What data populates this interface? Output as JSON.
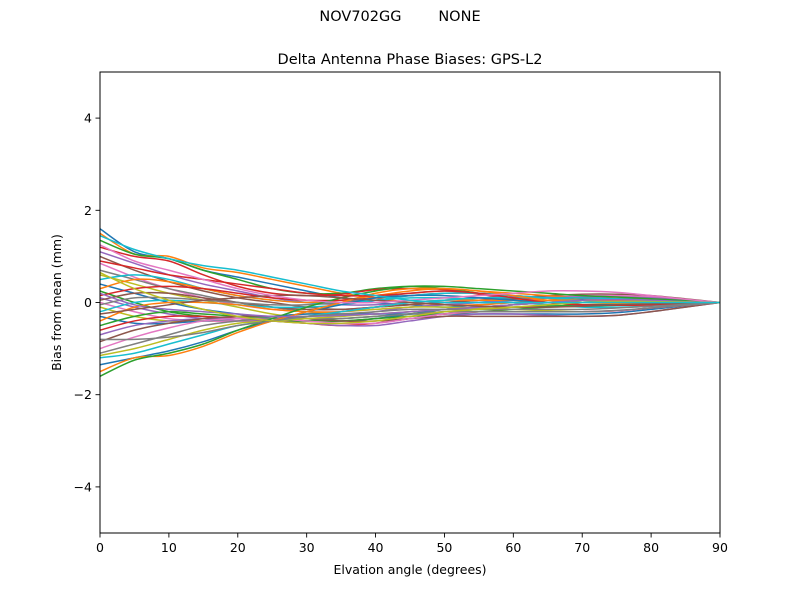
{
  "figure": {
    "suptitle": "NOV702GG        NONE"
  },
  "chart_data": {
    "type": "line",
    "title": "Delta Antenna Phase Biases: GPS-L2",
    "xlabel": "Elvation angle (degrees)",
    "ylabel": "Bias from mean (mm)",
    "xlim": [
      0,
      90
    ],
    "ylim": [
      -5,
      5
    ],
    "xticks": [
      0,
      10,
      20,
      30,
      40,
      50,
      60,
      70,
      80,
      90
    ],
    "yticks": [
      -4,
      -2,
      0,
      2,
      4
    ],
    "ytick_labels": [
      "−4",
      "−2",
      "0",
      "2",
      "4"
    ],
    "grid": false,
    "legend": "none",
    "x": [
      0,
      5,
      10,
      15,
      20,
      25,
      30,
      35,
      40,
      45,
      50,
      55,
      60,
      65,
      70,
      75,
      80,
      85,
      90
    ],
    "colors": [
      "#1f77b4",
      "#ff7f0e",
      "#2ca02c",
      "#d62728",
      "#9467bd",
      "#8c564b",
      "#e377c2",
      "#7f7f7f",
      "#bcbd22",
      "#17becf"
    ],
    "series": [
      {
        "values": [
          1.6,
          1.1,
          0.95,
          0.7,
          0.55,
          0.4,
          0.25,
          0.1,
          0.0,
          -0.05,
          -0.1,
          -0.05,
          0.0,
          0.05,
          0.08,
          0.08,
          0.06,
          0.03,
          0.0
        ]
      },
      {
        "values": [
          1.5,
          1.05,
          1.0,
          0.75,
          0.65,
          0.5,
          0.35,
          0.2,
          0.1,
          0.0,
          -0.05,
          -0.05,
          0.0,
          0.05,
          0.1,
          0.12,
          0.1,
          0.05,
          0.0
        ]
      },
      {
        "values": [
          1.35,
          1.05,
          0.95,
          0.7,
          0.5,
          0.3,
          0.2,
          0.2,
          0.3,
          0.35,
          0.3,
          0.2,
          0.1,
          0.0,
          -0.05,
          -0.05,
          -0.05,
          -0.02,
          0.0
        ]
      },
      {
        "values": [
          1.2,
          1.0,
          0.9,
          0.6,
          0.35,
          0.2,
          0.15,
          0.18,
          0.28,
          0.3,
          0.28,
          0.18,
          0.08,
          0.0,
          -0.05,
          -0.06,
          -0.05,
          -0.02,
          0.0
        ]
      },
      {
        "values": [
          1.1,
          0.85,
          0.6,
          0.4,
          0.25,
          0.1,
          0.0,
          -0.05,
          -0.05,
          0.0,
          0.05,
          0.1,
          0.12,
          0.12,
          0.1,
          0.08,
          0.05,
          0.02,
          0.0
        ]
      },
      {
        "values": [
          1.0,
          0.7,
          0.45,
          0.25,
          0.1,
          0.0,
          -0.1,
          -0.15,
          -0.1,
          -0.05,
          0.0,
          0.05,
          0.1,
          0.15,
          0.18,
          0.18,
          0.15,
          0.08,
          0.0
        ]
      },
      {
        "values": [
          0.85,
          0.55,
          0.3,
          0.1,
          -0.05,
          -0.15,
          -0.2,
          -0.2,
          -0.15,
          -0.1,
          -0.05,
          0.0,
          0.05,
          0.1,
          0.15,
          0.15,
          0.12,
          0.06,
          0.0
        ]
      },
      {
        "values": [
          0.7,
          0.5,
          0.3,
          0.15,
          0.0,
          -0.1,
          -0.2,
          -0.25,
          -0.25,
          -0.2,
          -0.15,
          -0.1,
          -0.05,
          0.0,
          0.05,
          0.08,
          0.08,
          0.04,
          0.0
        ]
      },
      {
        "values": [
          0.6,
          0.4,
          0.2,
          0.05,
          -0.1,
          -0.25,
          -0.35,
          -0.4,
          -0.35,
          -0.25,
          -0.15,
          -0.1,
          -0.05,
          0.0,
          0.05,
          0.06,
          0.05,
          0.03,
          0.0
        ]
      },
      {
        "values": [
          0.5,
          0.6,
          0.5,
          0.3,
          0.15,
          0.05,
          0.0,
          0.0,
          0.05,
          0.1,
          0.1,
          0.05,
          0.0,
          -0.05,
          -0.1,
          -0.1,
          -0.08,
          -0.04,
          0.0
        ]
      },
      {
        "values": [
          0.4,
          0.2,
          0.0,
          -0.15,
          -0.25,
          -0.35,
          -0.4,
          -0.4,
          -0.35,
          -0.25,
          -0.15,
          -0.1,
          -0.05,
          0.0,
          0.05,
          0.05,
          0.04,
          0.02,
          0.0
        ]
      },
      {
        "values": [
          0.3,
          0.5,
          0.45,
          0.3,
          0.15,
          0.05,
          0.0,
          0.05,
          0.15,
          0.25,
          0.3,
          0.25,
          0.2,
          0.15,
          0.1,
          0.08,
          0.05,
          0.02,
          0.0
        ]
      },
      {
        "values": [
          0.25,
          0.0,
          -0.2,
          -0.3,
          -0.35,
          -0.4,
          -0.4,
          -0.35,
          -0.3,
          -0.25,
          -0.2,
          -0.15,
          -0.1,
          -0.08,
          -0.05,
          -0.04,
          -0.03,
          -0.02,
          0.0
        ]
      },
      {
        "values": [
          0.15,
          0.3,
          0.35,
          0.3,
          0.2,
          0.1,
          0.05,
          0.05,
          0.1,
          0.15,
          0.2,
          0.2,
          0.15,
          0.1,
          0.05,
          0.02,
          0.0,
          0.0,
          0.0
        ]
      },
      {
        "values": [
          0.1,
          -0.1,
          -0.25,
          -0.35,
          -0.4,
          -0.4,
          -0.35,
          -0.3,
          -0.2,
          -0.1,
          -0.05,
          0.0,
          0.05,
          0.1,
          0.12,
          0.12,
          0.1,
          0.05,
          0.0
        ]
      },
      {
        "values": [
          0.05,
          0.2,
          0.2,
          0.1,
          0.0,
          -0.1,
          -0.15,
          -0.15,
          -0.1,
          -0.05,
          0.0,
          0.05,
          0.08,
          0.1,
          0.1,
          0.08,
          0.05,
          0.02,
          0.0
        ]
      },
      {
        "values": [
          0.0,
          -0.2,
          -0.35,
          -0.4,
          -0.4,
          -0.35,
          -0.3,
          -0.2,
          -0.1,
          0.0,
          0.05,
          0.05,
          0.05,
          0.05,
          0.05,
          0.05,
          0.04,
          0.02,
          0.0
        ]
      },
      {
        "values": [
          -0.05,
          0.1,
          0.1,
          0.05,
          0.0,
          -0.05,
          -0.05,
          0.0,
          0.1,
          0.2,
          0.25,
          0.2,
          0.15,
          0.1,
          0.05,
          0.03,
          0.02,
          0.01,
          0.0
        ]
      },
      {
        "values": [
          -0.1,
          -0.3,
          -0.4,
          -0.4,
          -0.35,
          -0.3,
          -0.25,
          -0.2,
          -0.15,
          -0.1,
          -0.1,
          -0.12,
          -0.15,
          -0.18,
          -0.2,
          -0.18,
          -0.12,
          -0.06,
          0.0
        ]
      },
      {
        "values": [
          -0.2,
          0.0,
          0.05,
          0.0,
          -0.05,
          -0.1,
          -0.1,
          -0.05,
          0.05,
          0.15,
          0.2,
          0.2,
          0.15,
          0.1,
          0.05,
          0.03,
          0.02,
          0.01,
          0.0
        ]
      },
      {
        "values": [
          -0.3,
          -0.45,
          -0.45,
          -0.4,
          -0.35,
          -0.3,
          -0.25,
          -0.25,
          -0.25,
          -0.25,
          -0.25,
          -0.25,
          -0.25,
          -0.25,
          -0.25,
          -0.22,
          -0.15,
          -0.07,
          0.0
        ]
      },
      {
        "values": [
          -0.4,
          -0.1,
          0.0,
          0.0,
          -0.05,
          -0.15,
          -0.2,
          -0.2,
          -0.1,
          0.0,
          0.05,
          0.05,
          0.05,
          0.05,
          0.05,
          0.04,
          0.03,
          0.01,
          0.0
        ]
      },
      {
        "values": [
          -0.5,
          -0.3,
          -0.2,
          -0.25,
          -0.3,
          -0.35,
          -0.4,
          -0.4,
          -0.35,
          -0.3,
          -0.25,
          -0.2,
          -0.15,
          -0.1,
          -0.08,
          -0.06,
          -0.04,
          -0.02,
          0.0
        ]
      },
      {
        "values": [
          -0.6,
          -0.4,
          -0.3,
          -0.3,
          -0.35,
          -0.4,
          -0.45,
          -0.5,
          -0.45,
          -0.35,
          -0.25,
          -0.2,
          -0.2,
          -0.2,
          -0.2,
          -0.18,
          -0.12,
          -0.06,
          0.0
        ]
      },
      {
        "values": [
          -0.7,
          -0.5,
          -0.4,
          -0.35,
          -0.35,
          -0.4,
          -0.45,
          -0.5,
          -0.5,
          -0.4,
          -0.3,
          -0.25,
          -0.25,
          -0.28,
          -0.3,
          -0.28,
          -0.2,
          -0.1,
          0.0
        ]
      },
      {
        "values": [
          -0.85,
          -0.6,
          -0.45,
          -0.35,
          -0.3,
          -0.3,
          -0.35,
          -0.4,
          -0.4,
          -0.35,
          -0.3,
          -0.3,
          -0.3,
          -0.3,
          -0.3,
          -0.28,
          -0.2,
          -0.1,
          0.0
        ]
      },
      {
        "values": [
          -1.0,
          -0.75,
          -0.55,
          -0.4,
          -0.35,
          -0.35,
          -0.4,
          -0.45,
          -0.45,
          -0.35,
          -0.25,
          -0.2,
          -0.2,
          -0.2,
          -0.2,
          -0.18,
          -0.12,
          -0.06,
          0.0
        ]
      },
      {
        "values": [
          -1.1,
          -0.9,
          -0.7,
          -0.5,
          -0.4,
          -0.35,
          -0.35,
          -0.35,
          -0.3,
          -0.25,
          -0.2,
          -0.2,
          -0.2,
          -0.2,
          -0.2,
          -0.17,
          -0.12,
          -0.06,
          0.0
        ]
      },
      {
        "values": [
          -1.15,
          -1.0,
          -0.8,
          -0.6,
          -0.45,
          -0.4,
          -0.35,
          -0.3,
          -0.25,
          -0.2,
          -0.15,
          -0.1,
          -0.05,
          0.0,
          0.05,
          0.06,
          0.05,
          0.02,
          0.0
        ]
      },
      {
        "values": [
          -1.2,
          -1.1,
          -0.9,
          -0.7,
          -0.5,
          -0.4,
          -0.3,
          -0.2,
          -0.1,
          0.0,
          0.05,
          0.1,
          0.1,
          0.1,
          0.1,
          0.08,
          0.05,
          0.02,
          0.0
        ]
      },
      {
        "values": [
          -1.35,
          -1.2,
          -1.05,
          -0.85,
          -0.6,
          -0.4,
          -0.2,
          -0.05,
          0.1,
          0.15,
          0.15,
          0.1,
          0.05,
          0.0,
          -0.05,
          -0.05,
          -0.04,
          -0.02,
          0.0
        ]
      },
      {
        "values": [
          -1.5,
          -1.2,
          -1.15,
          -0.95,
          -0.65,
          -0.4,
          -0.2,
          0.0,
          0.2,
          0.3,
          0.3,
          0.25,
          0.15,
          0.05,
          0.0,
          -0.02,
          -0.02,
          -0.01,
          0.0
        ]
      },
      {
        "values": [
          -1.6,
          -1.25,
          -1.1,
          -0.9,
          -0.6,
          -0.35,
          -0.1,
          0.1,
          0.25,
          0.35,
          0.35,
          0.3,
          0.25,
          0.2,
          0.15,
          0.12,
          0.08,
          0.04,
          0.0
        ]
      },
      {
        "values": [
          0.9,
          0.75,
          0.6,
          0.5,
          0.4,
          0.3,
          0.2,
          0.15,
          0.15,
          0.2,
          0.25,
          0.2,
          0.1,
          0.0,
          -0.05,
          -0.06,
          -0.05,
          -0.02,
          0.0
        ]
      },
      {
        "values": [
          0.2,
          -0.05,
          -0.15,
          -0.2,
          -0.25,
          -0.3,
          -0.3,
          -0.28,
          -0.25,
          -0.2,
          -0.15,
          -0.1,
          -0.05,
          0.0,
          0.05,
          0.06,
          0.05,
          0.02,
          0.0
        ]
      },
      {
        "values": [
          -0.25,
          -0.15,
          -0.05,
          0.05,
          0.1,
          0.15,
          0.15,
          0.1,
          0.05,
          0.0,
          -0.05,
          -0.08,
          -0.1,
          -0.1,
          -0.08,
          -0.05,
          -0.03,
          -0.01,
          0.0
        ]
      },
      {
        "values": [
          1.25,
          0.9,
          0.7,
          0.5,
          0.3,
          0.15,
          0.05,
          0.0,
          0.0,
          0.05,
          0.1,
          0.15,
          0.2,
          0.25,
          0.25,
          0.22,
          0.15,
          0.07,
          0.0
        ]
      },
      {
        "values": [
          -0.8,
          -0.8,
          -0.75,
          -0.65,
          -0.5,
          -0.4,
          -0.3,
          -0.25,
          -0.2,
          -0.15,
          -0.15,
          -0.15,
          -0.15,
          -0.15,
          -0.15,
          -0.12,
          -0.08,
          -0.04,
          0.0
        ]
      },
      {
        "values": [
          0.65,
          0.3,
          0.05,
          -0.15,
          -0.3,
          -0.4,
          -0.45,
          -0.45,
          -0.4,
          -0.3,
          -0.2,
          -0.15,
          -0.1,
          -0.05,
          0.0,
          0.02,
          0.02,
          0.01,
          0.0
        ]
      },
      {
        "values": [
          1.45,
          1.15,
          0.95,
          0.8,
          0.7,
          0.55,
          0.4,
          0.25,
          0.15,
          0.05,
          0.0,
          0.0,
          0.0,
          0.0,
          0.0,
          0.0,
          0.0,
          0.0,
          0.0
        ]
      }
    ]
  }
}
